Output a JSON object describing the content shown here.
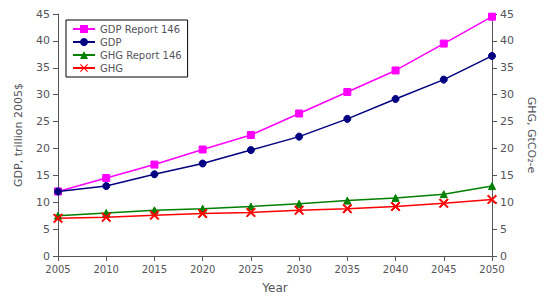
{
  "chart_data": {
    "type": "line",
    "xlabel": "Year",
    "ylabel": "GDP, trillion 2005$",
    "y2label": "GHG, GtCO₂-e",
    "x": [
      2005,
      2010,
      2015,
      2020,
      2025,
      2030,
      2035,
      2040,
      2045,
      2050
    ],
    "xlim": [
      2005,
      2050
    ],
    "xticks": [
      2005,
      2010,
      2015,
      2020,
      2025,
      2030,
      2035,
      2040,
      2045,
      2050
    ],
    "ylim": [
      0,
      45
    ],
    "yticks": [
      0,
      5,
      10,
      15,
      20,
      25,
      30,
      35,
      40,
      45
    ],
    "y2lim": [
      0,
      45
    ],
    "y2ticks": [
      0,
      5,
      10,
      15,
      20,
      25,
      30,
      35,
      40,
      45
    ],
    "grid": false,
    "legend": "upper left",
    "series": [
      {
        "name": "GDP Report 146",
        "color": "#FF00FF",
        "marker": "square",
        "values": [
          12.0,
          14.5,
          17.0,
          19.8,
          22.5,
          26.5,
          30.5,
          34.5,
          39.5,
          44.5
        ]
      },
      {
        "name": "GDP",
        "color": "#000080",
        "marker": "circle",
        "values": [
          12.0,
          13.0,
          15.2,
          17.2,
          19.7,
          22.2,
          25.5,
          29.2,
          32.8,
          37.2
        ]
      },
      {
        "name": "GHG Report 146",
        "color": "#008000",
        "marker": "triangle",
        "axis": "y2",
        "values": [
          7.5,
          8.0,
          8.5,
          8.8,
          9.2,
          9.7,
          10.3,
          10.8,
          11.5,
          13.0
        ]
      },
      {
        "name": "GHG",
        "color": "#FF0000",
        "marker": "x",
        "axis": "y2",
        "values": [
          7.0,
          7.2,
          7.6,
          7.9,
          8.1,
          8.5,
          8.8,
          9.2,
          9.8,
          10.5
        ]
      }
    ]
  }
}
